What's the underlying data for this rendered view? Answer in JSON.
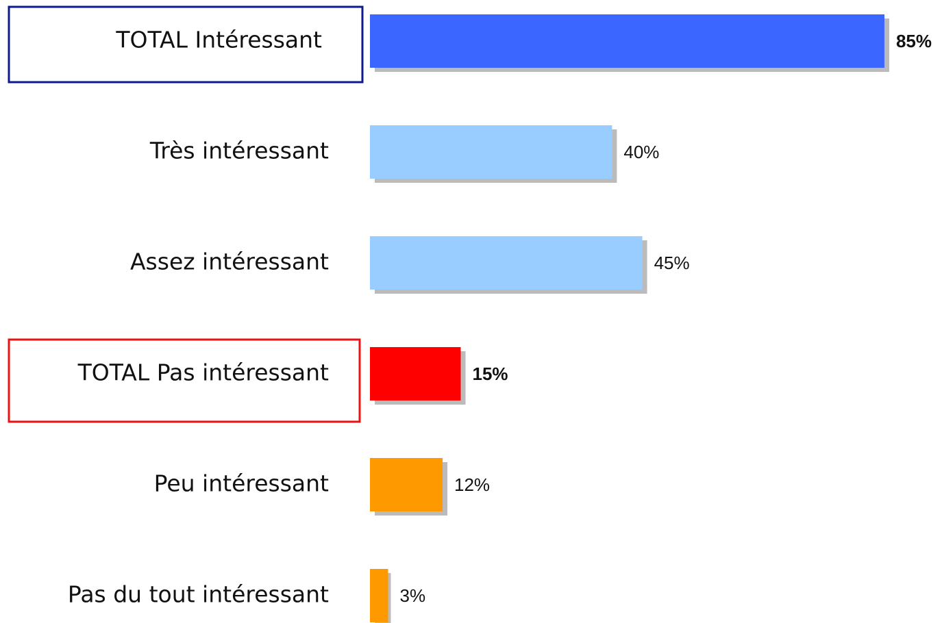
{
  "chart_data": {
    "type": "hbar",
    "categories": [
      "TOTAL Intéressant",
      "Très intéressant",
      "Assez intéressant",
      "TOTAL Pas intéressant",
      "Peu intéressant",
      "Pas du tout intéressant"
    ],
    "values": [
      85,
      40,
      45,
      15,
      12,
      3
    ],
    "value_labels": [
      "85%",
      "40%",
      "45%",
      "15%",
      "12%",
      "3%"
    ],
    "colors": [
      "#3a66ff",
      "#99ccff",
      "#99ccff",
      "#ff0000",
      "#ff9900",
      "#ff9900"
    ],
    "label_frames": [
      "#0d1a8c",
      null,
      null,
      "#ee1111",
      null,
      null
    ]
  }
}
